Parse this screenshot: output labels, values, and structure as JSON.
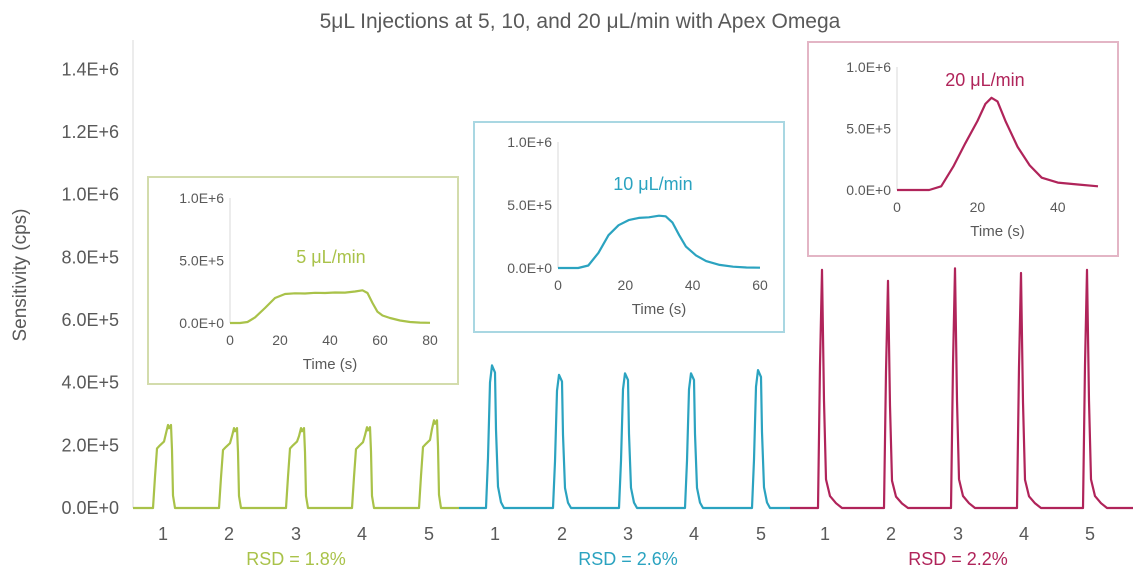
{
  "chart_data": {
    "type": "line",
    "title": "5μL Injections at 5, 10, and 20 μL/min with Apex Omega",
    "ylabel": "Sensitivity (cps)",
    "y_ticks": [
      "0.0E+0",
      "2.0E+5",
      "4.0E+5",
      "6.0E+5",
      "8.0E+5",
      "1.0E+6",
      "1.2E+6",
      "1.4E+6"
    ],
    "ylim": [
      0,
      1500000
    ],
    "grid": false,
    "legend": "none",
    "groups": [
      {
        "rate_label": "5 μL/min",
        "rsd_label": "RSD = 1.8%",
        "color": "#a9c249",
        "injection_labels": [
          "1",
          "2",
          "3",
          "4",
          "5"
        ],
        "peak_heights": [
          265000,
          255000,
          255000,
          258000,
          280000
        ],
        "plateau_heights": [
          200000,
          195000,
          200000,
          198000,
          205000
        ]
      },
      {
        "rate_label": "10 μL/min",
        "rsd_label": "RSD = 2.6%",
        "color": "#2ba3c0",
        "injection_labels": [
          "1",
          "2",
          "3",
          "4",
          "5"
        ],
        "peak_heights": [
          455000,
          425000,
          430000,
          430000,
          440000
        ]
      },
      {
        "rate_label": "20 μL/min",
        "rsd_label": "RSD = 2.2%",
        "color": "#b0245a",
        "injection_labels": [
          "1",
          "2",
          "3",
          "4",
          "5"
        ],
        "peak_heights": [
          760000,
          725000,
          765000,
          750000,
          760000
        ]
      }
    ],
    "insets": [
      {
        "series": "5 μL/min",
        "border_color": "#d3dcac",
        "xlabel": "Time (s)",
        "x_ticks": [
          "0",
          "20",
          "40",
          "60",
          "80"
        ],
        "xlim": [
          0,
          80
        ],
        "y_ticks": [
          "0.0E+0",
          "5.0E+5",
          "1.0E+6"
        ],
        "ylim": [
          0,
          1000000
        ],
        "points": [
          [
            0,
            0
          ],
          [
            4,
            0
          ],
          [
            7,
            8000
          ],
          [
            10,
            45000
          ],
          [
            14,
            120000
          ],
          [
            18,
            200000
          ],
          [
            22,
            232000
          ],
          [
            26,
            238000
          ],
          [
            30,
            236000
          ],
          [
            34,
            242000
          ],
          [
            38,
            240000
          ],
          [
            42,
            244000
          ],
          [
            46,
            243000
          ],
          [
            50,
            252000
          ],
          [
            53,
            262000
          ],
          [
            55,
            240000
          ],
          [
            57,
            160000
          ],
          [
            59,
            90000
          ],
          [
            61,
            60000
          ],
          [
            64,
            40000
          ],
          [
            68,
            20000
          ],
          [
            72,
            8000
          ],
          [
            76,
            3000
          ],
          [
            80,
            2000
          ]
        ]
      },
      {
        "series": "10 μL/min",
        "border_color": "#a9d7e2",
        "xlabel": "Time (s)",
        "x_ticks": [
          "0",
          "20",
          "40",
          "60"
        ],
        "xlim": [
          0,
          60
        ],
        "y_ticks": [
          "0.0E+0",
          "5.0E+5",
          "1.0E+6"
        ],
        "ylim": [
          0,
          1000000
        ],
        "points": [
          [
            0,
            0
          ],
          [
            6,
            0
          ],
          [
            9,
            20000
          ],
          [
            12,
            120000
          ],
          [
            15,
            260000
          ],
          [
            18,
            340000
          ],
          [
            21,
            380000
          ],
          [
            24,
            398000
          ],
          [
            27,
            402000
          ],
          [
            30,
            415000
          ],
          [
            32,
            410000
          ],
          [
            34,
            360000
          ],
          [
            36,
            260000
          ],
          [
            38,
            170000
          ],
          [
            41,
            100000
          ],
          [
            44,
            55000
          ],
          [
            48,
            25000
          ],
          [
            52,
            10000
          ],
          [
            56,
            4000
          ],
          [
            60,
            2000
          ]
        ]
      },
      {
        "series": "20 μL/min",
        "border_color": "#e3b5c5",
        "xlabel": "Time (s)",
        "x_ticks": [
          "0",
          "20",
          "40"
        ],
        "xlim": [
          0,
          50
        ],
        "y_ticks": [
          "0.0E+0",
          "5.0E+5",
          "1.0E+6"
        ],
        "ylim": [
          0,
          1000000
        ],
        "points": [
          [
            0,
            0
          ],
          [
            8,
            0
          ],
          [
            11,
            30000
          ],
          [
            14,
            190000
          ],
          [
            17,
            380000
          ],
          [
            20,
            560000
          ],
          [
            22,
            700000
          ],
          [
            23.5,
            750000
          ],
          [
            25,
            720000
          ],
          [
            27,
            560000
          ],
          [
            30,
            350000
          ],
          [
            33,
            200000
          ],
          [
            36,
            100000
          ],
          [
            40,
            60000
          ],
          [
            45,
            45000
          ],
          [
            50,
            30000
          ]
        ]
      }
    ]
  }
}
